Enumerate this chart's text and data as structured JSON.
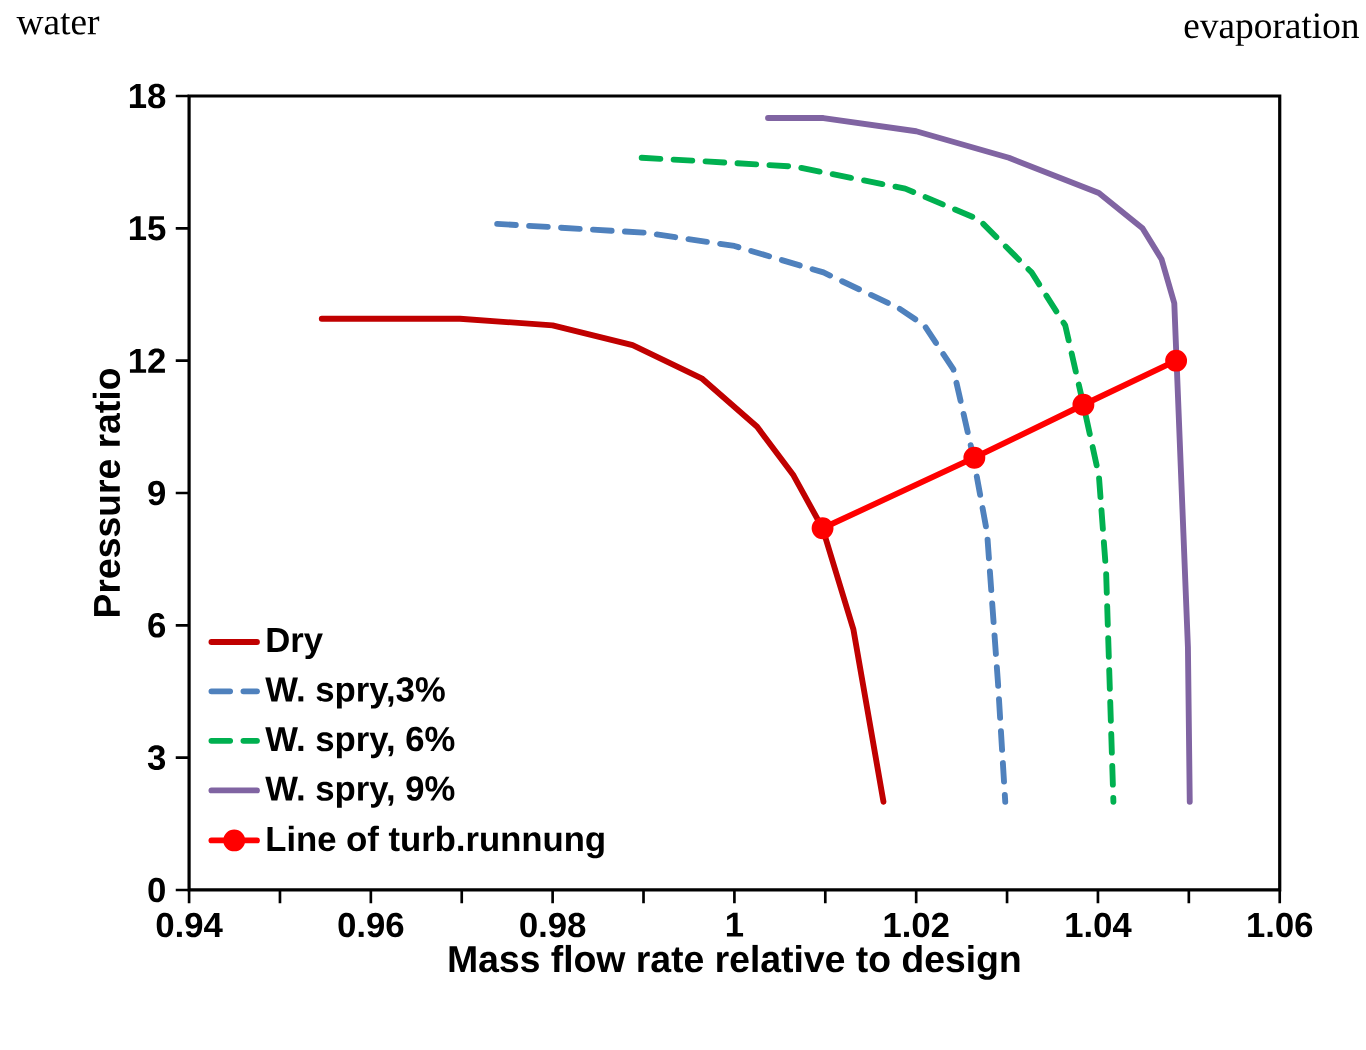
{
  "chart_data": {
    "type": "line",
    "xlabel": "Mass flow rate relative to design",
    "ylabel": "Pressure ratio",
    "annotations": [
      "water",
      "evaporation"
    ],
    "xlim": [
      0.94,
      1.06
    ],
    "xticks": [
      0.94,
      {
        "value": 0.95,
        "label": null
      },
      0.96,
      {
        "value": 0.97,
        "label": null
      },
      0.98,
      {
        "value": 0.99,
        "label": null
      },
      1,
      {
        "value": 1.01,
        "label": null
      },
      1.02,
      {
        "value": 1.03,
        "label": null
      },
      1.04,
      {
        "value": 1.05,
        "label": null
      },
      1.06
    ],
    "ylim": [
      0,
      18
    ],
    "yticks": [
      0,
      3,
      6,
      9,
      12,
      15,
      18
    ],
    "legend": "bottom left",
    "grid": false,
    "series": [
      {
        "name": "Dry",
        "color": "#c00000",
        "line_style": "solid",
        "marker": "none",
        "x": [
          0.9546,
          0.9698,
          0.98,
          0.9888,
          0.9964,
          1.0025,
          1.0065,
          1.0097,
          1.0131,
          1.0164
        ],
        "values": [
          12.95,
          12.95,
          12.8,
          12.35,
          11.6,
          10.5,
          9.4,
          8.2,
          5.9,
          2.0
        ]
      },
      {
        "name": "W. spry,3%",
        "color": "#4f81bd",
        "line_style": "dashed",
        "marker": "none",
        "x": [
          0.9739,
          0.9902,
          1.0,
          1.0098,
          1.018,
          1.0209,
          1.0241,
          1.0262,
          1.0278,
          1.029,
          1.0298
        ],
        "values": [
          15.1,
          14.9,
          14.6,
          14.0,
          13.2,
          12.8,
          11.8,
          9.9,
          8.1,
          4.7,
          2.0
        ]
      },
      {
        "name": "W. spry, 6%",
        "color": "#00b050",
        "line_style": "dashed",
        "marker": "none",
        "x": [
          0.9898,
          1.0066,
          1.0188,
          1.0269,
          1.0327,
          1.0364,
          1.0384,
          1.0401,
          1.0409,
          1.0417
        ],
        "values": [
          16.6,
          16.4,
          15.9,
          15.2,
          14.0,
          12.8,
          11.0,
          9.4,
          7.2,
          2.0
        ]
      },
      {
        "name": "W. spry, 9%",
        "color": "#8064a2",
        "line_style": "solid",
        "marker": "none",
        "x": [
          1.0037,
          1.0098,
          1.02,
          1.0302,
          1.0401,
          1.0449,
          1.047,
          1.0484,
          1.0486,
          1.0494,
          1.0499,
          1.0501
        ],
        "values": [
          17.5,
          17.5,
          17.2,
          16.6,
          15.8,
          15.0,
          14.3,
          13.3,
          null,
          8.1,
          5.5,
          2.0
        ]
      },
      {
        "name": "Line of turb.runnung",
        "color": "#ff0000",
        "line_style": "solid",
        "marker": "circle",
        "x": [
          1.0097,
          1.0264,
          1.0384,
          1.0486
        ],
        "values": [
          8.2,
          9.8,
          11.0,
          12.0
        ]
      }
    ]
  }
}
